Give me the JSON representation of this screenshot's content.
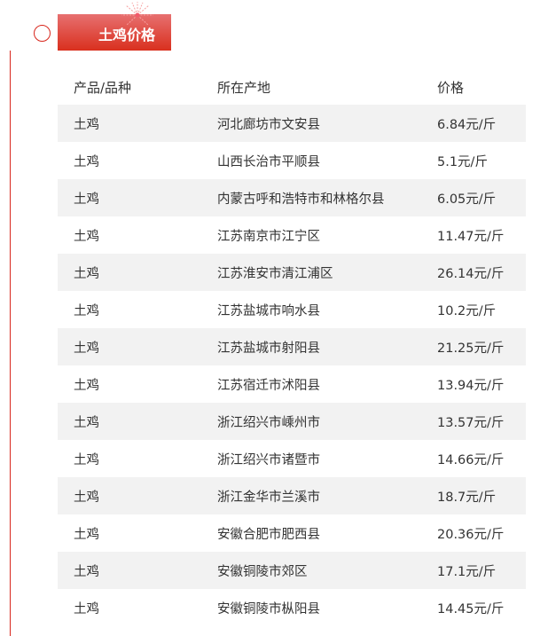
{
  "section": {
    "title": "土鸡价格",
    "accent": "#d8261c"
  },
  "table": {
    "headers": [
      "产品/品种",
      "所在产地",
      "价格"
    ],
    "rows": [
      [
        "土鸡",
        "河北廊坊市文安县",
        "6.84元/斤"
      ],
      [
        "土鸡",
        "山西长治市平顺县",
        "5.1元/斤"
      ],
      [
        "土鸡",
        "内蒙古呼和浩特市和林格尔县",
        "6.05元/斤"
      ],
      [
        "土鸡",
        "江苏南京市江宁区",
        "11.47元/斤"
      ],
      [
        "土鸡",
        "江苏淮安市清江浦区",
        "26.14元/斤"
      ],
      [
        "土鸡",
        "江苏盐城市响水县",
        "10.2元/斤"
      ],
      [
        "土鸡",
        "江苏盐城市射阳县",
        "21.25元/斤"
      ],
      [
        "土鸡",
        "江苏宿迁市沭阳县",
        "13.94元/斤"
      ],
      [
        "土鸡",
        "浙江绍兴市嵊州市",
        "13.57元/斤"
      ],
      [
        "土鸡",
        "浙江绍兴市诸暨市",
        "14.66元/斤"
      ],
      [
        "土鸡",
        "浙江金华市兰溪市",
        "18.7元/斤"
      ],
      [
        "土鸡",
        "安徽合肥市肥西县",
        "20.36元/斤"
      ],
      [
        "土鸡",
        "安徽铜陵市郊区",
        "17.1元/斤"
      ],
      [
        "土鸡",
        "安徽铜陵市枞阳县",
        "14.45元/斤"
      ]
    ]
  }
}
